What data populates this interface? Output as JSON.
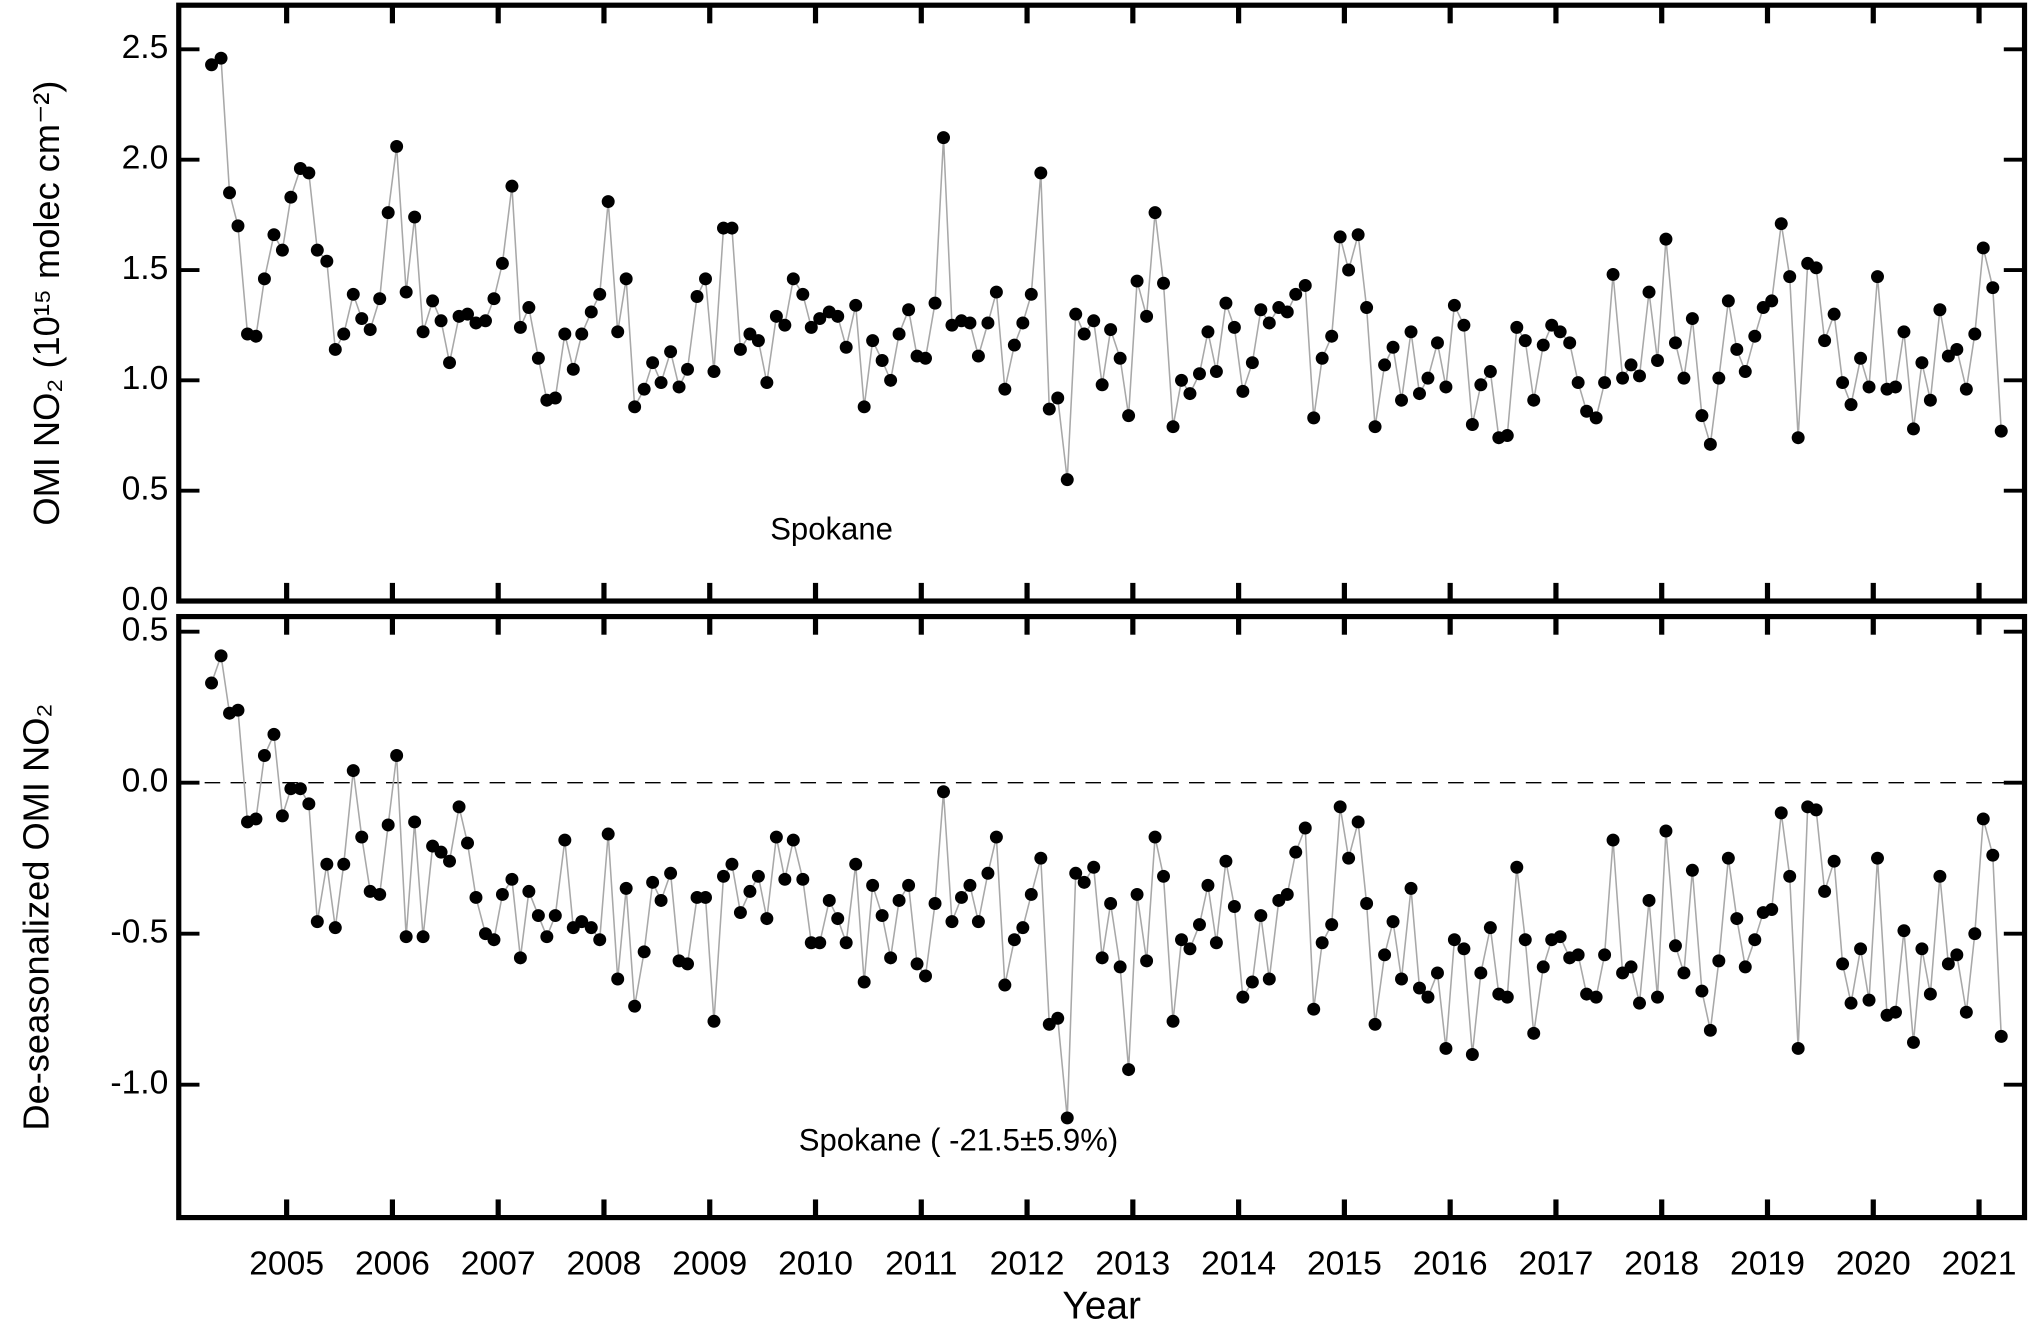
{
  "chart_data": [
    {
      "type": "line",
      "ylabel": "OMI NO₂ (10¹⁵ molec cm⁻²)",
      "annotation": "Spokane",
      "xlim": [
        2004.48,
        2021.93
      ],
      "xticks": [
        {
          "value": 2005.5,
          "label": "2005"
        },
        {
          "value": 2006.5,
          "label": "2006"
        },
        {
          "value": 2007.5,
          "label": "2007"
        },
        {
          "value": 2008.5,
          "label": "2008"
        },
        {
          "value": 2009.5,
          "label": "2009"
        },
        {
          "value": 2010.5,
          "label": "2010"
        },
        {
          "value": 2011.5,
          "label": "2011"
        },
        {
          "value": 2012.5,
          "label": "2012"
        },
        {
          "value": 2013.5,
          "label": "2013"
        },
        {
          "value": 2014.5,
          "label": "2014"
        },
        {
          "value": 2015.5,
          "label": "2015"
        },
        {
          "value": 2016.5,
          "label": "2016"
        },
        {
          "value": 2017.5,
          "label": "2017"
        },
        {
          "value": 2018.5,
          "label": "2018"
        },
        {
          "value": 2019.5,
          "label": "2019"
        },
        {
          "value": 2020.5,
          "label": "2020"
        },
        {
          "value": 2021.5,
          "label": "2021"
        }
      ],
      "ylim": [
        0,
        2.7
      ],
      "yticks": [
        {
          "value": 0,
          "label": "0.0"
        },
        0.5,
        {
          "value": 1,
          "label": "1.0"
        },
        1.5,
        {
          "value": 2,
          "label": "2.0"
        },
        2.5
      ],
      "color": "#000000",
      "line_color": "#a8a8a8",
      "x": [
        2004.79,
        2004.88,
        2004.96,
        2005.04,
        2005.13,
        2005.21,
        2005.29,
        2005.38,
        2005.46,
        2005.54,
        2005.63,
        2005.71,
        2005.79,
        2005.88,
        2005.96,
        2006.04,
        2006.13,
        2006.21,
        2006.29,
        2006.38,
        2006.46,
        2006.54,
        2006.63,
        2006.71,
        2006.79,
        2006.88,
        2006.96,
        2007.04,
        2007.13,
        2007.21,
        2007.29,
        2007.38,
        2007.46,
        2007.54,
        2007.63,
        2007.71,
        2007.79,
        2007.88,
        2007.96,
        2008.04,
        2008.13,
        2008.21,
        2008.29,
        2008.38,
        2008.46,
        2008.54,
        2008.63,
        2008.71,
        2008.79,
        2008.88,
        2008.96,
        2009.04,
        2009.13,
        2009.21,
        2009.29,
        2009.38,
        2009.46,
        2009.54,
        2009.63,
        2009.71,
        2009.79,
        2009.88,
        2009.96,
        2010.04,
        2010.13,
        2010.21,
        2010.29,
        2010.38,
        2010.46,
        2010.54,
        2010.63,
        2010.71,
        2010.79,
        2010.88,
        2010.96,
        2011.04,
        2011.13,
        2011.21,
        2011.29,
        2011.38,
        2011.46,
        2011.54,
        2011.63,
        2011.71,
        2011.79,
        2011.88,
        2011.96,
        2012.04,
        2012.13,
        2012.21,
        2012.29,
        2012.38,
        2012.46,
        2012.54,
        2012.63,
        2012.71,
        2012.79,
        2012.88,
        2012.96,
        2013.04,
        2013.13,
        2013.21,
        2013.29,
        2013.38,
        2013.46,
        2013.54,
        2013.63,
        2013.71,
        2013.79,
        2013.88,
        2013.96,
        2014.04,
        2014.13,
        2014.21,
        2014.29,
        2014.38,
        2014.46,
        2014.54,
        2014.63,
        2014.71,
        2014.79,
        2014.88,
        2014.96,
        2015.04,
        2015.13,
        2015.21,
        2015.29,
        2015.38,
        2015.46,
        2015.54,
        2015.63,
        2015.71,
        2015.79,
        2015.88,
        2015.96,
        2016.04,
        2016.13,
        2016.21,
        2016.29,
        2016.38,
        2016.46,
        2016.54,
        2016.63,
        2016.71,
        2016.79,
        2016.88,
        2016.96,
        2017.04,
        2017.13,
        2017.21,
        2017.29,
        2017.38,
        2017.46,
        2017.54,
        2017.63,
        2017.71,
        2017.79,
        2017.88,
        2017.96,
        2018.04,
        2018.13,
        2018.21,
        2018.29,
        2018.38,
        2018.46,
        2018.54,
        2018.63,
        2018.71,
        2018.79,
        2018.88,
        2018.96,
        2019.04,
        2019.13,
        2019.21,
        2019.29,
        2019.38,
        2019.46,
        2019.54,
        2019.63,
        2019.71,
        2019.79,
        2019.88,
        2019.96,
        2020.04,
        2020.13,
        2020.21,
        2020.29,
        2020.38,
        2020.46,
        2020.54,
        2020.63,
        2020.71,
        2020.79,
        2020.88,
        2020.96,
        2021.04,
        2021.13,
        2021.21,
        2021.29,
        2021.38,
        2021.46,
        2021.54,
        2021.63,
        2021.71
      ],
      "values": [
        2.43,
        2.46,
        1.85,
        1.7,
        1.21,
        1.2,
        1.46,
        1.66,
        1.59,
        1.83,
        1.96,
        1.94,
        1.59,
        1.54,
        1.14,
        1.21,
        1.39,
        1.28,
        1.23,
        1.37,
        1.76,
        2.06,
        1.4,
        1.74,
        1.22,
        1.36,
        1.27,
        1.08,
        1.29,
        1.3,
        1.26,
        1.27,
        1.37,
        1.53,
        1.88,
        1.24,
        1.33,
        1.1,
        0.91,
        0.92,
        1.21,
        1.05,
        1.21,
        1.31,
        1.39,
        1.81,
        1.22,
        1.46,
        0.88,
        0.96,
        1.08,
        0.99,
        1.13,
        0.97,
        1.05,
        1.38,
        1.46,
        1.04,
        1.69,
        1.69,
        1.14,
        1.21,
        1.18,
        0.99,
        1.29,
        1.25,
        1.46,
        1.39,
        1.24,
        1.28,
        1.31,
        1.29,
        1.15,
        1.34,
        0.88,
        1.18,
        1.09,
        1.0,
        1.21,
        1.32,
        1.11,
        1.1,
        1.35,
        2.1,
        1.25,
        1.27,
        1.26,
        1.11,
        1.26,
        1.4,
        0.96,
        1.16,
        1.26,
        1.39,
        1.94,
        0.87,
        0.92,
        0.55,
        1.3,
        1.21,
        1.27,
        0.98,
        1.23,
        1.1,
        0.84,
        1.45,
        1.29,
        1.76,
        1.44,
        0.79,
        1.0,
        0.94,
        1.03,
        1.22,
        1.04,
        1.35,
        1.24,
        0.95,
        1.08,
        1.32,
        1.26,
        1.33,
        1.31,
        1.39,
        1.43,
        0.83,
        1.1,
        1.2,
        1.65,
        1.5,
        1.66,
        1.33,
        0.79,
        1.07,
        1.15,
        0.91,
        1.22,
        0.94,
        1.01,
        1.17,
        0.97,
        1.34,
        1.25,
        0.8,
        0.98,
        1.04,
        0.74,
        0.75,
        1.24,
        1.18,
        0.91,
        1.16,
        1.25,
        1.22,
        1.17,
        0.99,
        0.86,
        0.83,
        0.99,
        1.48,
        1.01,
        1.07,
        1.02,
        1.4,
        1.09,
        1.64,
        1.17,
        1.01,
        1.28,
        0.84,
        0.71,
        1.01,
        1.36,
        1.14,
        1.04,
        1.2,
        1.33,
        1.36,
        1.71,
        1.47,
        0.74,
        1.53,
        1.51,
        1.18,
        1.3,
        0.99,
        0.89,
        1.1,
        0.97,
        1.47,
        0.96,
        0.97,
        1.22,
        0.78,
        1.08,
        0.91,
        1.32,
        1.11,
        1.14,
        0.96,
        1.21,
        1.6,
        1.42,
        0.77
      ]
    },
    {
      "type": "line",
      "ylabel": "De-seasonalized OMI NO₂",
      "xlabel": "Year",
      "annotation": "Spokane ( -21.5±5.9%)",
      "reference_line": 0,
      "xlim": [
        2004.48,
        2021.93
      ],
      "xticks": [
        {
          "value": 2005.5,
          "label": "2005"
        },
        {
          "value": 2006.5,
          "label": "2006"
        },
        {
          "value": 2007.5,
          "label": "2007"
        },
        {
          "value": 2008.5,
          "label": "2008"
        },
        {
          "value": 2009.5,
          "label": "2009"
        },
        {
          "value": 2010.5,
          "label": "2010"
        },
        {
          "value": 2011.5,
          "label": "2011"
        },
        {
          "value": 2012.5,
          "label": "2012"
        },
        {
          "value": 2013.5,
          "label": "2013"
        },
        {
          "value": 2014.5,
          "label": "2014"
        },
        {
          "value": 2015.5,
          "label": "2015"
        },
        {
          "value": 2016.5,
          "label": "2016"
        },
        {
          "value": 2017.5,
          "label": "2017"
        },
        {
          "value": 2018.5,
          "label": "2018"
        },
        {
          "value": 2019.5,
          "label": "2019"
        },
        {
          "value": 2020.5,
          "label": "2020"
        },
        {
          "value": 2021.5,
          "label": "2021"
        }
      ],
      "ylim": [
        -1.44,
        0.55
      ],
      "yticks": [
        {
          "value": -1,
          "label": "-1.0"
        },
        -0.5,
        {
          "value": 0,
          "label": "0.0"
        },
        0.5
      ],
      "color": "#000000",
      "line_color": "#a8a8a8",
      "x": [
        2004.79,
        2004.88,
        2004.96,
        2005.04,
        2005.13,
        2005.21,
        2005.29,
        2005.38,
        2005.46,
        2005.54,
        2005.63,
        2005.71,
        2005.79,
        2005.88,
        2005.96,
        2006.04,
        2006.13,
        2006.21,
        2006.29,
        2006.38,
        2006.46,
        2006.54,
        2006.63,
        2006.71,
        2006.79,
        2006.88,
        2006.96,
        2007.04,
        2007.13,
        2007.21,
        2007.29,
        2007.38,
        2007.46,
        2007.54,
        2007.63,
        2007.71,
        2007.79,
        2007.88,
        2007.96,
        2008.04,
        2008.13,
        2008.21,
        2008.29,
        2008.38,
        2008.46,
        2008.54,
        2008.63,
        2008.71,
        2008.79,
        2008.88,
        2008.96,
        2009.04,
        2009.13,
        2009.21,
        2009.29,
        2009.38,
        2009.46,
        2009.54,
        2009.63,
        2009.71,
        2009.79,
        2009.88,
        2009.96,
        2010.04,
        2010.13,
        2010.21,
        2010.29,
        2010.38,
        2010.46,
        2010.54,
        2010.63,
        2010.71,
        2010.79,
        2010.88,
        2010.96,
        2011.04,
        2011.13,
        2011.21,
        2011.29,
        2011.38,
        2011.46,
        2011.54,
        2011.63,
        2011.71,
        2011.79,
        2011.88,
        2011.96,
        2012.04,
        2012.13,
        2012.21,
        2012.29,
        2012.38,
        2012.46,
        2012.54,
        2012.63,
        2012.71,
        2012.79,
        2012.88,
        2012.96,
        2013.04,
        2013.13,
        2013.21,
        2013.29,
        2013.38,
        2013.46,
        2013.54,
        2013.63,
        2013.71,
        2013.79,
        2013.88,
        2013.96,
        2014.04,
        2014.13,
        2014.21,
        2014.29,
        2014.38,
        2014.46,
        2014.54,
        2014.63,
        2014.71,
        2014.79,
        2014.88,
        2014.96,
        2015.04,
        2015.13,
        2015.21,
        2015.29,
        2015.38,
        2015.46,
        2015.54,
        2015.63,
        2015.71,
        2015.79,
        2015.88,
        2015.96,
        2016.04,
        2016.13,
        2016.21,
        2016.29,
        2016.38,
        2016.46,
        2016.54,
        2016.63,
        2016.71,
        2016.79,
        2016.88,
        2016.96,
        2017.04,
        2017.13,
        2017.21,
        2017.29,
        2017.38,
        2017.46,
        2017.54,
        2017.63,
        2017.71,
        2017.79,
        2017.88,
        2017.96,
        2018.04,
        2018.13,
        2018.21,
        2018.29,
        2018.38,
        2018.46,
        2018.54,
        2018.63,
        2018.71,
        2018.79,
        2018.88,
        2018.96,
        2019.04,
        2019.13,
        2019.21,
        2019.29,
        2019.38,
        2019.46,
        2019.54,
        2019.63,
        2019.71,
        2019.79,
        2019.88,
        2019.96,
        2020.04,
        2020.13,
        2020.21,
        2020.29,
        2020.38,
        2020.46,
        2020.54,
        2020.63,
        2020.71,
        2020.79,
        2020.88,
        2020.96,
        2021.04,
        2021.13,
        2021.21,
        2021.29,
        2021.38,
        2021.46,
        2021.54,
        2021.63,
        2021.71
      ],
      "values": [
        0.33,
        0.42,
        0.23,
        0.24,
        -0.13,
        -0.12,
        0.09,
        0.16,
        -0.11,
        -0.02,
        -0.02,
        -0.07,
        -0.46,
        -0.27,
        -0.48,
        -0.27,
        0.04,
        -0.18,
        -0.36,
        -0.37,
        -0.14,
        0.09,
        -0.51,
        -0.13,
        -0.51,
        -0.21,
        -0.23,
        -0.26,
        -0.08,
        -0.2,
        -0.38,
        -0.5,
        -0.52,
        -0.37,
        -0.32,
        -0.58,
        -0.36,
        -0.44,
        -0.51,
        -0.44,
        -0.19,
        -0.48,
        -0.46,
        -0.48,
        -0.52,
        -0.17,
        -0.65,
        -0.35,
        -0.74,
        -0.56,
        -0.33,
        -0.39,
        -0.3,
        -0.59,
        -0.6,
        -0.38,
        -0.38,
        -0.79,
        -0.31,
        -0.27,
        -0.43,
        -0.36,
        -0.31,
        -0.45,
        -0.18,
        -0.32,
        -0.19,
        -0.32,
        -0.53,
        -0.53,
        -0.39,
        -0.45,
        -0.53,
        -0.27,
        -0.66,
        -0.34,
        -0.44,
        -0.58,
        -0.39,
        -0.34,
        -0.6,
        -0.64,
        -0.4,
        -0.03,
        -0.46,
        -0.38,
        -0.34,
        -0.46,
        -0.3,
        -0.18,
        -0.67,
        -0.52,
        -0.48,
        -0.37,
        -0.25,
        -0.8,
        -0.78,
        -1.11,
        -0.3,
        -0.33,
        -0.28,
        -0.58,
        -0.4,
        -0.61,
        -0.95,
        -0.37,
        -0.59,
        -0.18,
        -0.31,
        -0.79,
        -0.52,
        -0.55,
        -0.47,
        -0.34,
        -0.53,
        -0.26,
        -0.41,
        -0.71,
        -0.66,
        -0.44,
        -0.65,
        -0.39,
        -0.37,
        -0.23,
        -0.15,
        -0.75,
        -0.53,
        -0.47,
        -0.08,
        -0.25,
        -0.13,
        -0.4,
        -0.8,
        -0.57,
        -0.46,
        -0.65,
        -0.35,
        -0.68,
        -0.71,
        -0.63,
        -0.88,
        -0.52,
        -0.55,
        -0.9,
        -0.63,
        -0.48,
        -0.7,
        -0.71,
        -0.28,
        -0.52,
        -0.83,
        -0.61,
        -0.52,
        -0.51,
        -0.58,
        -0.57,
        -0.7,
        -0.71,
        -0.57,
        -0.19,
        -0.63,
        -0.61,
        -0.73,
        -0.39,
        -0.71,
        -0.16,
        -0.54,
        -0.63,
        -0.29,
        -0.69,
        -0.82,
        -0.59,
        -0.25,
        -0.45,
        -0.61,
        -0.52,
        -0.43,
        -0.42,
        -0.1,
        -0.31,
        -0.88,
        -0.08,
        -0.09,
        -0.36,
        -0.26,
        -0.6,
        -0.73,
        -0.55,
        -0.72,
        -0.25,
        -0.77,
        -0.76,
        -0.49,
        -0.86,
        -0.55,
        -0.7,
        -0.31,
        -0.6,
        -0.57,
        -0.76,
        -0.5,
        -0.12,
        -0.24,
        -0.84
      ]
    }
  ]
}
